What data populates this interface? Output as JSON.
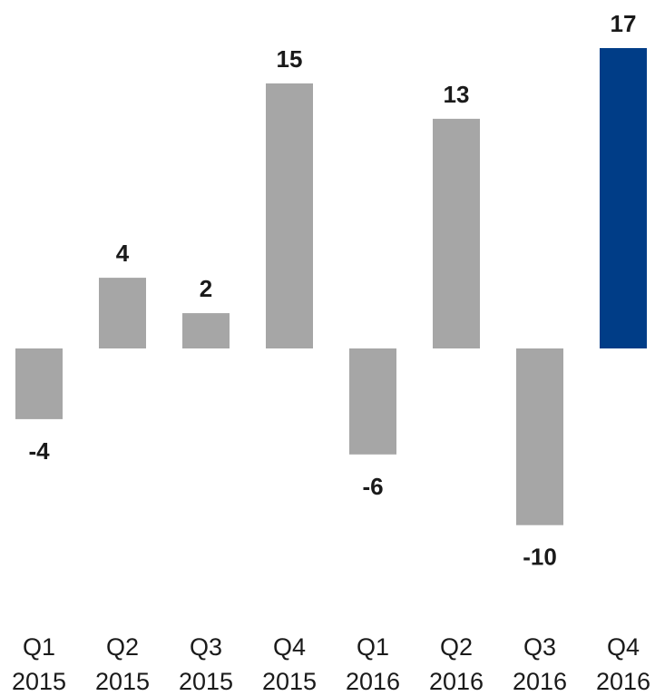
{
  "chart_data": {
    "type": "bar",
    "categories": [
      [
        "Q1",
        "2015"
      ],
      [
        "Q2",
        "2015"
      ],
      [
        "Q3",
        "2015"
      ],
      [
        "Q4",
        "2015"
      ],
      [
        "Q1",
        "2016"
      ],
      [
        "Q2",
        "2016"
      ],
      [
        "Q3",
        "2016"
      ],
      [
        "Q4",
        "2016"
      ]
    ],
    "values": [
      -4,
      4,
      2,
      15,
      -6,
      13,
      -10,
      17
    ],
    "value_labels": [
      "-4",
      "4",
      "2",
      "15",
      "-6",
      "13",
      "-10",
      "17"
    ],
    "title": "",
    "xlabel": "",
    "ylabel": "",
    "ylim": [
      -10,
      17
    ],
    "grid": false,
    "legend": "none",
    "colors": {
      "default_bar": "#a6a6a6",
      "highlight_bar": "#003d87",
      "label_text": "#1a1a1a"
    },
    "highlight_index": 7
  }
}
